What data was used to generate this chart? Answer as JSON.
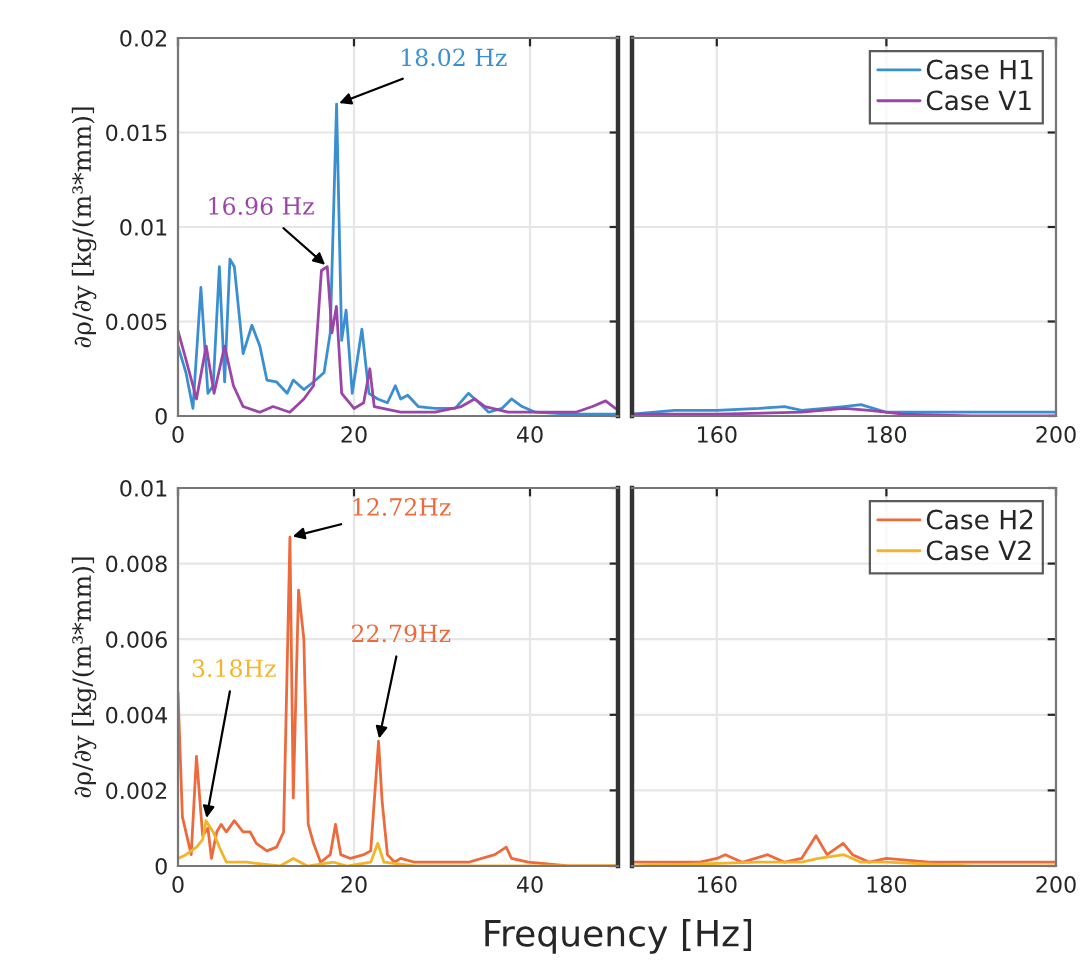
{
  "chart_data": [
    {
      "type": "line",
      "ylabel": "∂ρ/∂y [kg/(m³*mm)]",
      "xlim": [
        0,
        50
      ],
      "ylim": [
        0,
        0.02
      ],
      "xticks": [
        0,
        20,
        40
      ],
      "yticks": [
        0,
        0.005,
        0.01,
        0.015,
        0.02
      ],
      "grid": true,
      "legend": false,
      "annotations": [
        {
          "text": "18.02 Hz",
          "x": 18.02,
          "y": 0.0165
        },
        {
          "text": "16.96 Hz",
          "x": 16.96,
          "y": 0.0079
        }
      ],
      "series": [
        {
          "color": "#3a8fd0",
          "x": [
            0,
            0.9,
            1.7,
            2.6,
            3.4,
            4.0,
            4.7,
            5.3,
            5.9,
            6.4,
            7.4,
            8.4,
            9.3,
            10.1,
            11.2,
            12.4,
            13.1,
            14.3,
            15.4,
            16.6,
            17.3,
            18.02,
            18.6,
            19.1,
            19.8,
            20.9,
            21.7,
            22.7,
            23.8,
            24.7,
            25.3,
            26.1,
            27.3,
            29.2,
            31.5,
            33.0,
            34.2,
            35.3,
            36.8,
            37.9,
            39.1,
            40.6,
            44.4,
            49.7
          ],
          "values": [
            0.0037,
            0.0023,
            0.0004,
            0.0068,
            0.0012,
            0.0016,
            0.0079,
            0.0018,
            0.0083,
            0.0079,
            0.0033,
            0.0048,
            0.0037,
            0.0019,
            0.0018,
            0.0012,
            0.0019,
            0.0014,
            0.0018,
            0.0023,
            0.0044,
            0.0165,
            0.004,
            0.0056,
            0.0012,
            0.0046,
            0.0012,
            0.0009,
            0.0007,
            0.0016,
            0.0009,
            0.0011,
            0.0005,
            0.0004,
            0.0004,
            0.0012,
            0.0007,
            0.0002,
            0.0004,
            0.0009,
            0.0005,
            0.0002,
            0.0001,
            0.0001
          ]
        },
        {
          "color": "#9b45a8",
          "x": [
            0,
            0.9,
            2.1,
            3.2,
            4.1,
            5.3,
            6.3,
            7.4,
            9.3,
            10.8,
            12.7,
            14.3,
            15.4,
            16.3,
            16.96,
            17.5,
            18.0,
            18.6,
            20.0,
            21.1,
            21.8,
            22.3,
            25.3,
            29.2,
            32.2,
            33.7,
            34.9,
            37.5,
            40.6,
            45.2,
            47.1,
            48.6,
            49.7
          ],
          "values": [
            0.0045,
            0.003,
            0.0009,
            0.0037,
            0.0012,
            0.0037,
            0.0016,
            0.0005,
            0.0002,
            0.0005,
            0.0002,
            0.0009,
            0.0016,
            0.0077,
            0.0079,
            0.0044,
            0.0058,
            0.0012,
            0.0004,
            0.0007,
            0.0025,
            0.0005,
            0.0002,
            0.0002,
            0.0005,
            0.0009,
            0.0005,
            0.0002,
            0.0002,
            0.0002,
            0.0005,
            0.0008,
            0.0004
          ]
        }
      ]
    },
    {
      "type": "line",
      "xlim": [
        150,
        200
      ],
      "ylim": [
        0,
        0.02
      ],
      "xticks": [
        160,
        180,
        200
      ],
      "yticks": [
        0,
        0.005,
        0.01,
        0.015,
        0.02
      ],
      "grid": true,
      "legend": "top right",
      "tick_labels": "x",
      "series": [
        {
          "name": "Case H1",
          "color": "#3a8fd0",
          "x": [
            150,
            155,
            160,
            165,
            168,
            170,
            175,
            177,
            180,
            185,
            190,
            195,
            200
          ],
          "values": [
            0.0001,
            0.0003,
            0.0003,
            0.0004,
            0.0005,
            0.0003,
            0.0005,
            0.0006,
            0.0002,
            0.0002,
            0.0002,
            0.0002,
            0.0002
          ]
        },
        {
          "name": "Case V1",
          "color": "#9b45a8",
          "x": [
            150,
            160,
            170,
            175,
            178,
            182,
            190,
            200
          ],
          "values": [
            0.0001,
            0.0001,
            0.0002,
            0.0004,
            0.0003,
            0.0001,
            0,
            0
          ]
        }
      ]
    },
    {
      "type": "line",
      "ylabel": "∂ρ/∂y [kg/(m³*mm)]",
      "xlabel": "Frequency [Hz]",
      "xlim": [
        0,
        50
      ],
      "ylim": [
        0,
        0.01
      ],
      "xticks": [
        0,
        20,
        40
      ],
      "yticks": [
        0,
        0.002,
        0.004,
        0.006,
        0.008,
        0.01
      ],
      "grid": true,
      "legend": false,
      "annotations": [
        {
          "text": "12.72Hz",
          "x": 12.72,
          "y": 0.0087
        },
        {
          "text": "3.18Hz",
          "x": 3.18,
          "y": 0.0012
        },
        {
          "text": "22.79Hz",
          "x": 22.79,
          "y": 0.0033
        }
      ],
      "series": [
        {
          "color": "#ec6a3c",
          "x": [
            0,
            0.5,
            1.5,
            2.1,
            2.8,
            3.4,
            3.8,
            4.4,
            4.9,
            5.5,
            6.4,
            7.4,
            8.2,
            8.9,
            10.1,
            11.2,
            12.0,
            12.72,
            13.1,
            13.7,
            14.3,
            14.8,
            15.4,
            16.2,
            17.3,
            17.9,
            18.5,
            19.6,
            21.1,
            21.9,
            22.79,
            23.2,
            23.8,
            24.6,
            25.3,
            26.9,
            29.9,
            33.0,
            36.0,
            37.3,
            37.9,
            39.8,
            44.4,
            49.7
          ],
          "values": [
            0.0046,
            0.0013,
            0.0003,
            0.0029,
            0.0008,
            0.001,
            0.0002,
            0.0009,
            0.0011,
            0.0009,
            0.0012,
            0.0009,
            0.0009,
            0.0006,
            0.0004,
            0.0005,
            0.0009,
            0.0087,
            0.0018,
            0.0073,
            0.006,
            0.0011,
            0.0006,
            0.0001,
            0.0003,
            0.0011,
            0.0003,
            0.0002,
            0.0003,
            0.0004,
            0.0033,
            0.0017,
            0.0003,
            0.0001,
            0.0002,
            0.0001,
            0.0001,
            0.0001,
            0.0003,
            0.0005,
            0.0002,
            0.0001,
            0,
            0
          ]
        },
        {
          "color": "#f2b52a",
          "x": [
            0,
            0.9,
            2.1,
            2.8,
            3.18,
            4.0,
            4.7,
            5.5,
            7.8,
            11.6,
            13.1,
            14.7,
            17.7,
            19.2,
            21.9,
            22.7,
            23.4,
            26.9,
            33.0,
            40.6,
            49.7
          ],
          "values": [
            0.0002,
            0.0003,
            0.0005,
            0.0007,
            0.0012,
            0.0009,
            0.0005,
            0.0001,
            0.0001,
            0,
            0.0002,
            0,
            0.0001,
            0,
            0.0001,
            0.0006,
            0.0001,
            0,
            0,
            0,
            0
          ]
        }
      ]
    },
    {
      "type": "line",
      "xlim": [
        150,
        200
      ],
      "ylim": [
        0,
        0.01
      ],
      "xticks": [
        160,
        180,
        200
      ],
      "yticks": [
        0,
        0.002,
        0.004,
        0.006,
        0.008,
        0.01
      ],
      "grid": true,
      "legend": "top right",
      "tick_labels": "x",
      "series": [
        {
          "name": "Case H2",
          "color": "#ec6a3c",
          "x": [
            150,
            156,
            158,
            160,
            161,
            163,
            166,
            168,
            170,
            171.7,
            173,
            174.9,
            176,
            178,
            180,
            185,
            190,
            200
          ],
          "values": [
            0.0001,
            0.0001,
            0.0001,
            0.0002,
            0.0003,
            0.0001,
            0.0003,
            0.0001,
            0.0002,
            0.0008,
            0.0003,
            0.0006,
            0.0003,
            0.0001,
            0.0002,
            0.0001,
            0.0001,
            0.0001
          ]
        },
        {
          "name": "Case V2",
          "color": "#f2b52a",
          "x": [
            150,
            165,
            170,
            172,
            175,
            177,
            180,
            190,
            200
          ],
          "values": [
            0,
            0.0001,
            0.0001,
            0.0002,
            0.0003,
            0.0001,
            0.0001,
            0,
            0
          ]
        }
      ]
    }
  ]
}
